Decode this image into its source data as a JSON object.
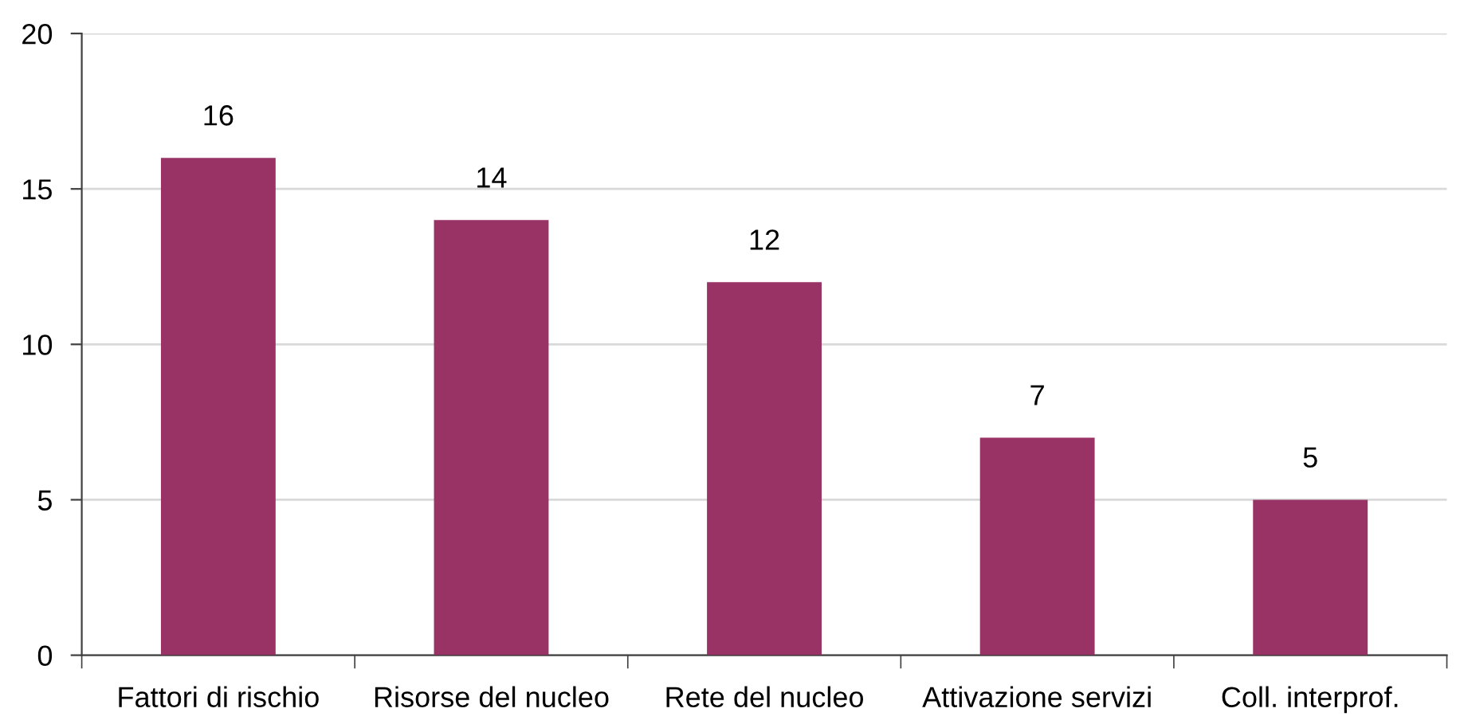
{
  "chart_data": {
    "type": "bar",
    "categories": [
      "Fattori di rischio",
      "Risorse del nucleo",
      "Rete del nucleo",
      "Attivazione servizi",
      "Coll. interprof."
    ],
    "values": [
      16,
      14,
      12,
      7,
      5
    ],
    "color": "#993366",
    "ylim": [
      0,
      20
    ],
    "yticks": [
      0,
      5,
      10,
      15,
      20
    ],
    "grid": "y",
    "data_labels": true
  }
}
